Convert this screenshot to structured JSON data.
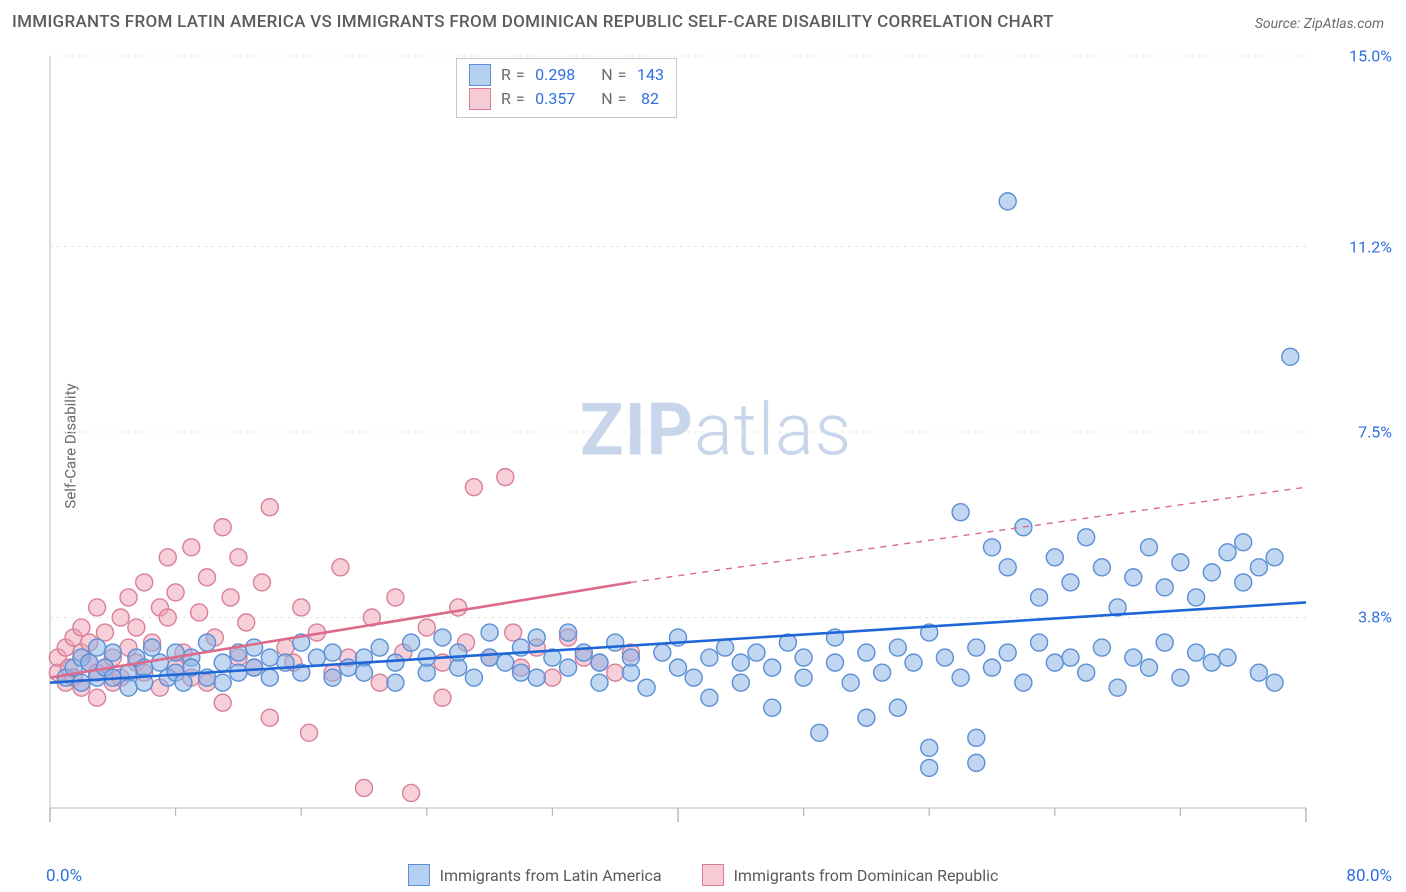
{
  "title": "IMMIGRANTS FROM LATIN AMERICA VS IMMIGRANTS FROM DOMINICAN REPUBLIC SELF-CARE DISABILITY CORRELATION CHART",
  "source_label": "Source:",
  "source_value": "ZipAtlas.com",
  "ylabel": "Self-Care Disability",
  "watermark_a": "ZIP",
  "watermark_b": "atlas",
  "chart": {
    "type": "scatter",
    "background_color": "#ffffff",
    "grid_color": "#e3e3e3",
    "axis_color": "#cfcfcf",
    "tick_color": "#b8b8b8",
    "xlim": [
      0,
      80
    ],
    "ylim": [
      0,
      15
    ],
    "x_origin_label": "0.0%",
    "x_max_label": "80.0%",
    "y_ticks": [
      3.8,
      7.5,
      11.2,
      15.0
    ],
    "y_tick_labels": [
      "3.8%",
      "7.5%",
      "11.2%",
      "15.0%"
    ],
    "x_major_ticks": [
      0,
      40,
      80
    ],
    "x_minor_ticks": [
      8,
      16,
      24,
      32,
      48,
      56,
      64,
      72
    ],
    "marker_radius": 8.5,
    "marker_stroke_width": 1.4,
    "trend_line_width": 2.6,
    "trend_dash": "6 6",
    "series": [
      {
        "key": "latin_america",
        "label": "Immigrants from Latin America",
        "fill": "rgba(140,180,230,0.55)",
        "stroke": "#5b8fd6",
        "line_color": "#1f66d6",
        "R": "0.298",
        "N": "143",
        "trend_from": [
          0,
          2.5
        ],
        "trend_to": [
          80,
          4.1
        ],
        "trend_dashed_from": null,
        "trend_dashed_to": null,
        "points": [
          [
            1,
            2.6
          ],
          [
            1.5,
            2.8
          ],
          [
            2,
            2.5
          ],
          [
            2,
            3.0
          ],
          [
            2.5,
            2.9
          ],
          [
            3,
            2.6
          ],
          [
            3,
            3.2
          ],
          [
            3.5,
            2.8
          ],
          [
            4,
            2.6
          ],
          [
            4,
            3.1
          ],
          [
            5,
            2.7
          ],
          [
            5,
            2.4
          ],
          [
            5.5,
            3.0
          ],
          [
            6,
            2.8
          ],
          [
            6,
            2.5
          ],
          [
            6.5,
            3.2
          ],
          [
            7,
            2.9
          ],
          [
            7.5,
            2.6
          ],
          [
            8,
            3.1
          ],
          [
            8,
            2.7
          ],
          [
            8.5,
            2.5
          ],
          [
            9,
            3.0
          ],
          [
            9,
            2.8
          ],
          [
            10,
            2.6
          ],
          [
            10,
            3.3
          ],
          [
            11,
            2.9
          ],
          [
            11,
            2.5
          ],
          [
            12,
            3.1
          ],
          [
            12,
            2.7
          ],
          [
            13,
            2.8
          ],
          [
            13,
            3.2
          ],
          [
            14,
            2.6
          ],
          [
            14,
            3.0
          ],
          [
            15,
            2.9
          ],
          [
            16,
            2.7
          ],
          [
            16,
            3.3
          ],
          [
            17,
            3.0
          ],
          [
            18,
            2.6
          ],
          [
            18,
            3.1
          ],
          [
            19,
            2.8
          ],
          [
            20,
            3.0
          ],
          [
            20,
            2.7
          ],
          [
            21,
            3.2
          ],
          [
            22,
            2.9
          ],
          [
            22,
            2.5
          ],
          [
            23,
            3.3
          ],
          [
            24,
            2.7
          ],
          [
            24,
            3.0
          ],
          [
            25,
            3.4
          ],
          [
            26,
            2.8
          ],
          [
            26,
            3.1
          ],
          [
            27,
            2.6
          ],
          [
            28,
            3.0
          ],
          [
            28,
            3.5
          ],
          [
            29,
            2.9
          ],
          [
            30,
            2.7
          ],
          [
            30,
            3.2
          ],
          [
            31,
            3.4
          ],
          [
            31,
            2.6
          ],
          [
            32,
            3.0
          ],
          [
            33,
            2.8
          ],
          [
            33,
            3.5
          ],
          [
            34,
            3.1
          ],
          [
            35,
            2.5
          ],
          [
            35,
            2.9
          ],
          [
            36,
            3.3
          ],
          [
            37,
            2.7
          ],
          [
            37,
            3.0
          ],
          [
            38,
            2.4
          ],
          [
            39,
            3.1
          ],
          [
            40,
            2.8
          ],
          [
            40,
            3.4
          ],
          [
            41,
            2.6
          ],
          [
            42,
            3.0
          ],
          [
            42,
            2.2
          ],
          [
            43,
            3.2
          ],
          [
            44,
            2.9
          ],
          [
            44,
            2.5
          ],
          [
            45,
            3.1
          ],
          [
            46,
            2.0
          ],
          [
            46,
            2.8
          ],
          [
            47,
            3.3
          ],
          [
            48,
            2.6
          ],
          [
            48,
            3.0
          ],
          [
            49,
            1.5
          ],
          [
            50,
            2.9
          ],
          [
            50,
            3.4
          ],
          [
            51,
            2.5
          ],
          [
            52,
            3.1
          ],
          [
            52,
            1.8
          ],
          [
            53,
            2.7
          ],
          [
            54,
            3.2
          ],
          [
            54,
            2.0
          ],
          [
            55,
            2.9
          ],
          [
            56,
            3.5
          ],
          [
            56,
            1.2
          ],
          [
            57,
            3.0
          ],
          [
            58,
            2.6
          ],
          [
            58,
            5.9
          ],
          [
            59,
            3.2
          ],
          [
            59,
            1.4
          ],
          [
            60,
            2.8
          ],
          [
            60,
            5.2
          ],
          [
            61,
            3.1
          ],
          [
            61,
            4.8
          ],
          [
            62,
            2.5
          ],
          [
            62,
            5.6
          ],
          [
            63,
            3.3
          ],
          [
            63,
            4.2
          ],
          [
            64,
            2.9
          ],
          [
            64,
            5.0
          ],
          [
            65,
            3.0
          ],
          [
            65,
            4.5
          ],
          [
            66,
            2.7
          ],
          [
            66,
            5.4
          ],
          [
            67,
            3.2
          ],
          [
            67,
            4.8
          ],
          [
            68,
            2.4
          ],
          [
            68,
            4.0
          ],
          [
            69,
            3.0
          ],
          [
            69,
            4.6
          ],
          [
            70,
            2.8
          ],
          [
            70,
            5.2
          ],
          [
            71,
            3.3
          ],
          [
            71,
            4.4
          ],
          [
            72,
            2.6
          ],
          [
            72,
            4.9
          ],
          [
            73,
            3.1
          ],
          [
            73,
            4.2
          ],
          [
            74,
            4.7
          ],
          [
            74,
            2.9
          ],
          [
            75,
            5.1
          ],
          [
            75,
            3.0
          ],
          [
            76,
            4.5
          ],
          [
            76,
            5.3
          ],
          [
            77,
            2.7
          ],
          [
            77,
            4.8
          ],
          [
            78,
            5.0
          ],
          [
            78,
            2.5
          ],
          [
            79,
            9.0
          ],
          [
            61,
            12.1
          ],
          [
            56,
            0.8
          ],
          [
            59,
            0.9
          ]
        ]
      },
      {
        "key": "dominican",
        "label": "Immigrants from Dominican Republic",
        "fill": "rgba(240,160,180,0.5)",
        "stroke": "#d97f9a",
        "line_color": "#dc6a88",
        "R": "0.357",
        "N": "82",
        "trend_from": [
          0,
          2.6
        ],
        "trend_to": [
          37,
          4.5
        ],
        "trend_dashed_from": [
          37,
          4.5
        ],
        "trend_dashed_to": [
          80,
          6.4
        ],
        "points": [
          [
            0.5,
            2.7
          ],
          [
            0.5,
            3.0
          ],
          [
            1,
            2.5
          ],
          [
            1,
            3.2
          ],
          [
            1.2,
            2.8
          ],
          [
            1.5,
            3.4
          ],
          [
            1.5,
            2.6
          ],
          [
            2,
            3.1
          ],
          [
            2,
            2.4
          ],
          [
            2,
            3.6
          ],
          [
            2.5,
            2.9
          ],
          [
            2.5,
            3.3
          ],
          [
            3,
            2.7
          ],
          [
            3,
            4.0
          ],
          [
            3,
            2.2
          ],
          [
            3.5,
            3.5
          ],
          [
            3.5,
            2.8
          ],
          [
            4,
            3.0
          ],
          [
            4,
            2.5
          ],
          [
            4.5,
            3.8
          ],
          [
            4.5,
            2.6
          ],
          [
            5,
            3.2
          ],
          [
            5,
            4.2
          ],
          [
            5.5,
            2.9
          ],
          [
            5.5,
            3.6
          ],
          [
            6,
            4.5
          ],
          [
            6,
            2.7
          ],
          [
            6.5,
            3.3
          ],
          [
            7,
            4.0
          ],
          [
            7,
            2.4
          ],
          [
            7.5,
            3.8
          ],
          [
            7.5,
            5.0
          ],
          [
            8,
            2.8
          ],
          [
            8,
            4.3
          ],
          [
            8.5,
            3.1
          ],
          [
            9,
            5.2
          ],
          [
            9,
            2.6
          ],
          [
            9.5,
            3.9
          ],
          [
            10,
            4.6
          ],
          [
            10,
            2.5
          ],
          [
            10.5,
            3.4
          ],
          [
            11,
            5.6
          ],
          [
            11,
            2.1
          ],
          [
            11.5,
            4.2
          ],
          [
            12,
            3.0
          ],
          [
            12,
            5.0
          ],
          [
            12.5,
            3.7
          ],
          [
            13,
            2.8
          ],
          [
            13.5,
            4.5
          ],
          [
            14,
            6.0
          ],
          [
            14,
            1.8
          ],
          [
            15,
            3.2
          ],
          [
            15.5,
            2.9
          ],
          [
            16,
            4.0
          ],
          [
            16.5,
            1.5
          ],
          [
            17,
            3.5
          ],
          [
            18,
            2.7
          ],
          [
            18.5,
            4.8
          ],
          [
            19,
            3.0
          ],
          [
            20,
            0.4
          ],
          [
            20.5,
            3.8
          ],
          [
            21,
            2.5
          ],
          [
            22,
            4.2
          ],
          [
            22.5,
            3.1
          ],
          [
            23,
            0.3
          ],
          [
            24,
            3.6
          ],
          [
            25,
            2.9
          ],
          [
            26,
            4.0
          ],
          [
            26.5,
            3.3
          ],
          [
            27,
            6.4
          ],
          [
            28,
            3.0
          ],
          [
            29,
            6.6
          ],
          [
            29.5,
            3.5
          ],
          [
            30,
            2.8
          ],
          [
            31,
            3.2
          ],
          [
            32,
            2.6
          ],
          [
            33,
            3.4
          ],
          [
            34,
            3.0
          ],
          [
            35,
            2.9
          ],
          [
            36,
            2.7
          ],
          [
            37,
            3.1
          ],
          [
            25,
            2.2
          ]
        ]
      }
    ]
  },
  "legend_box": {
    "R_prefix": "R =",
    "N_prefix": "N ="
  }
}
